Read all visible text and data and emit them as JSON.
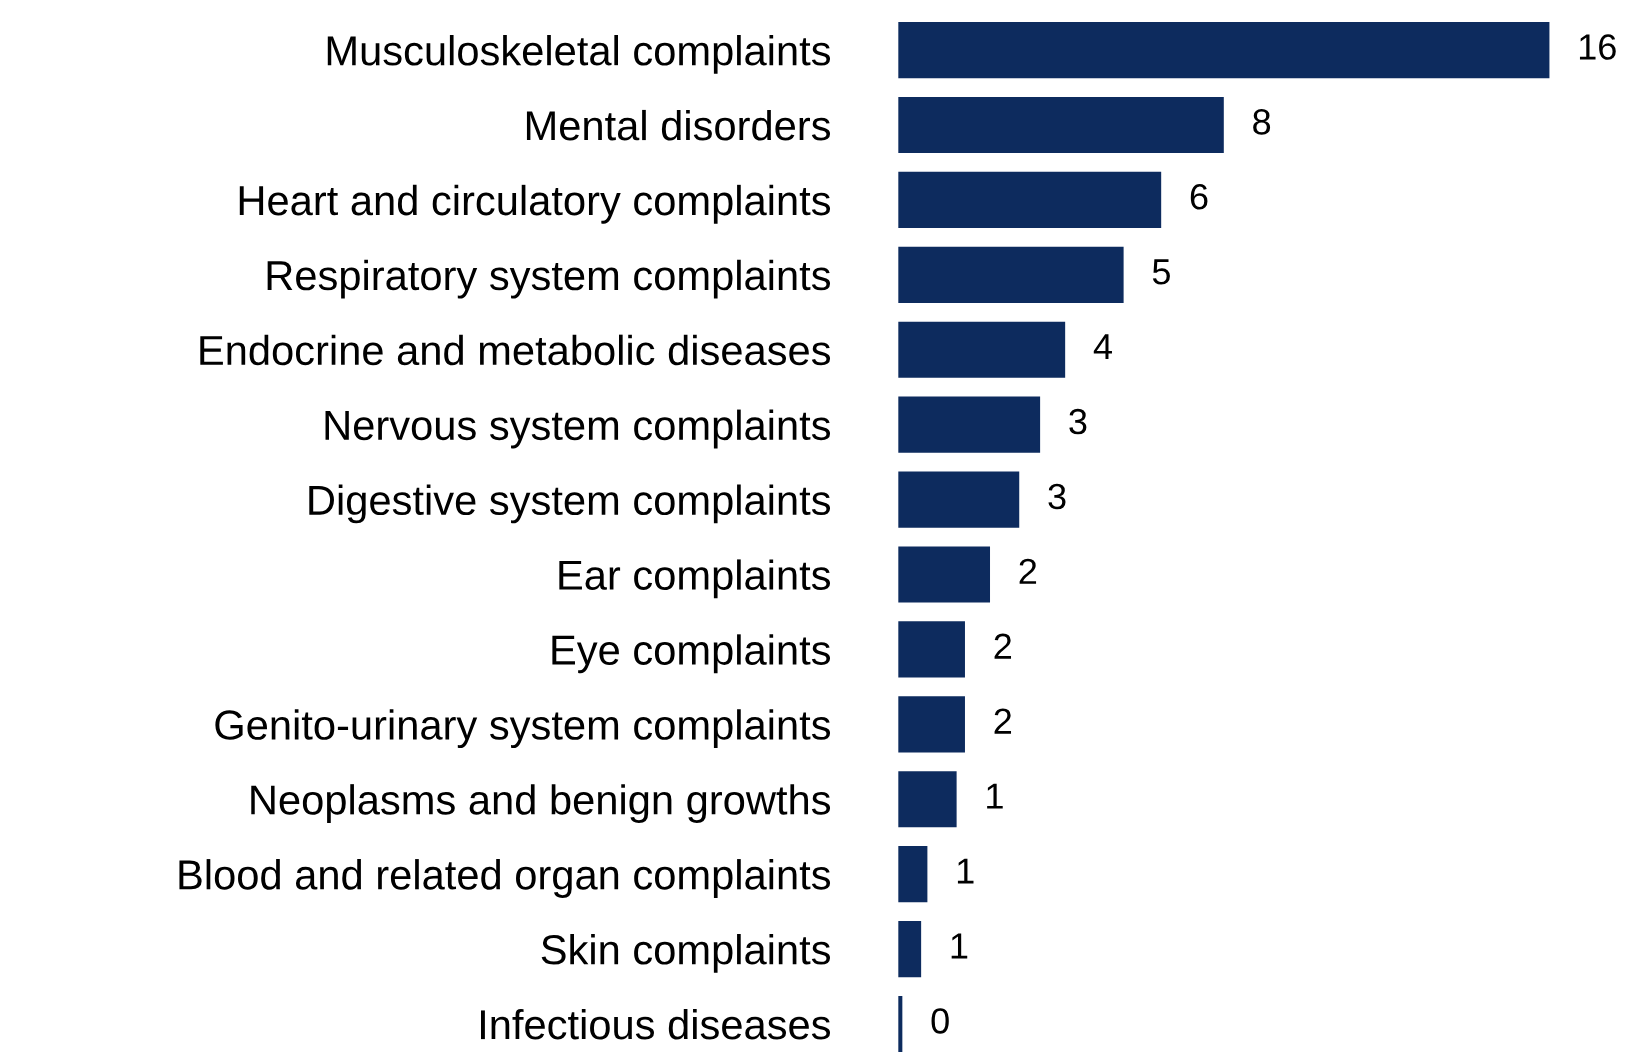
{
  "chart_data": {
    "type": "bar",
    "orientation": "horizontal",
    "categories": [
      "Musculoskeletal complaints",
      "Mental disorders",
      "Heart and circulatory complaints",
      "Respiratory system complaints",
      "Endocrine and metabolic diseases",
      "Nervous system complaints",
      "Digestive system complaints",
      "Ear complaints",
      "Eye complaints",
      "Genito-urinary system complaints",
      "Neoplasms and benign growths",
      "Blood and related organ complaints",
      "Skin complaints",
      "Infectious diseases"
    ],
    "values": [
      15.6,
      7.8,
      6.3,
      5.4,
      4.0,
      3.4,
      2.9,
      2.2,
      1.6,
      1.6,
      1.4,
      0.7,
      0.55,
      0.1
    ],
    "value_labels": [
      "16",
      "8",
      "6",
      "5",
      "4",
      "3",
      "3",
      "2",
      "2",
      "2",
      "1",
      "1",
      "1",
      "0"
    ],
    "color": "#0d2b5e",
    "grid": false,
    "legend": false
  }
}
